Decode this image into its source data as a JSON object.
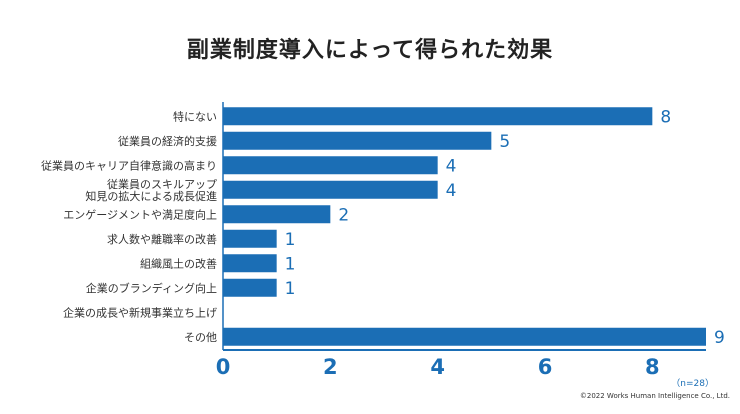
{
  "chart_data": {
    "type": "bar",
    "orientation": "horizontal",
    "title": "副業制度導入によって得られた効果",
    "categories": [
      "特にない",
      "従業員の経済的支援",
      "従業員のキャリア自律意識の高まり",
      "従業員のスキルアップ\n知見の拡大による成長促進",
      "エンゲージメントや満足度向上",
      "求人数や離職率の改善",
      "組織風土の改善",
      "企業のブランディング向上",
      "企業の成長や新規事業立ち上げ",
      "その他"
    ],
    "values": [
      8,
      5,
      4,
      4,
      2,
      1,
      1,
      1,
      0,
      9
    ],
    "xlim": [
      0,
      9
    ],
    "xticks": [
      0,
      2,
      4,
      6,
      8
    ],
    "grid": false,
    "bar_color": "#1b6eb5",
    "axis_color": "#1b6eb5"
  },
  "footer": {
    "note": "（n=28）",
    "copyright": "©2022 Works Human Intelligence Co., Ltd."
  }
}
